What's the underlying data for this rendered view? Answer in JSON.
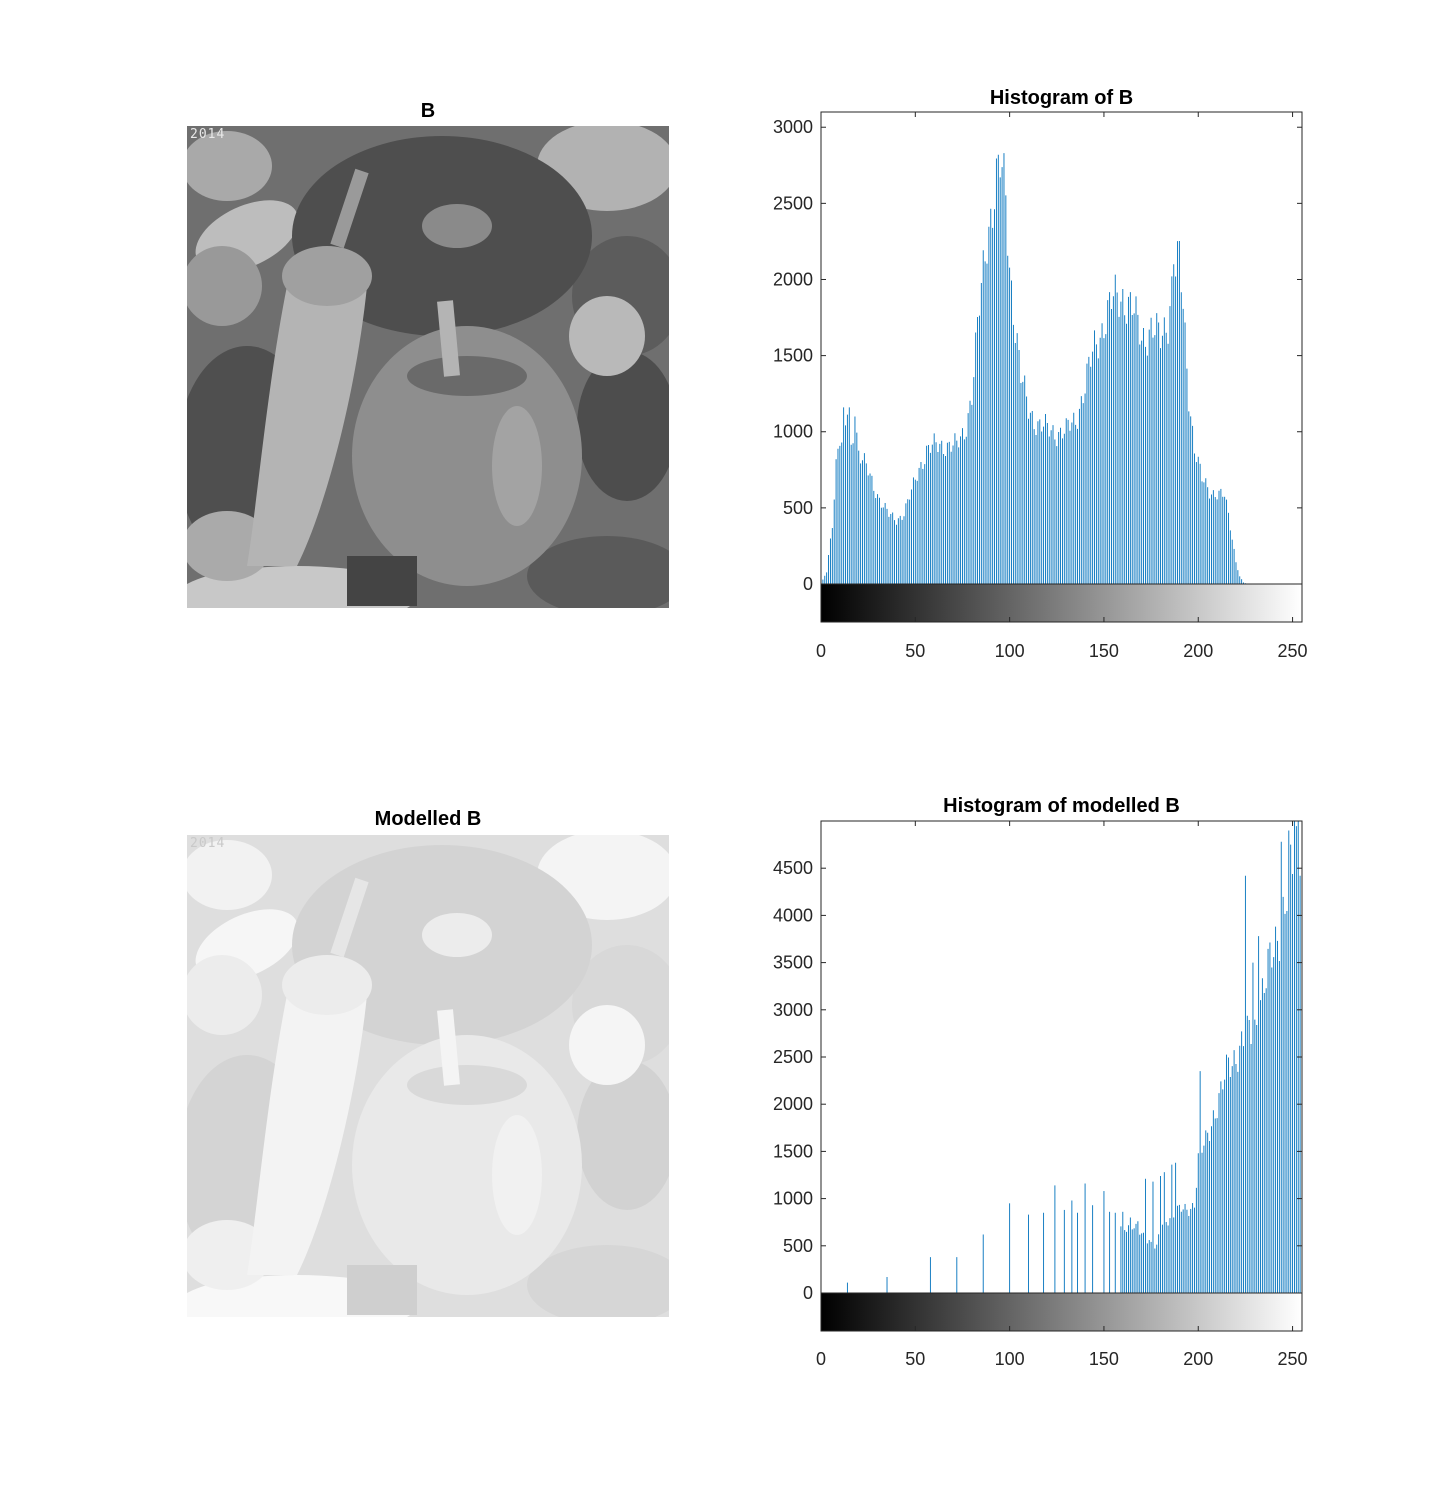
{
  "panels": {
    "image_b": {
      "title": "B",
      "stamp": "2014"
    },
    "image_modelled": {
      "title": "Modelled B",
      "stamp": "2014"
    }
  },
  "colors": {
    "bar": "#0072bd",
    "axis": "#262626",
    "text": "#262626",
    "background": "#ffffff"
  },
  "chart_data": [
    {
      "type": "bar",
      "title": "Histogram of B",
      "xlabel": "",
      "ylabel": "",
      "xlim": [
        0,
        255
      ],
      "ylim": [
        0,
        3100
      ],
      "xticks": [
        0,
        50,
        100,
        150,
        200,
        250
      ],
      "yticks": [
        0,
        500,
        1000,
        1500,
        2000,
        2500,
        3000
      ],
      "colorbar": "grayscale 0-255",
      "grid": false,
      "series": [
        {
          "keypoints": [
            [
              0,
              0
            ],
            [
              3,
              80
            ],
            [
              6,
              400
            ],
            [
              8,
              800
            ],
            [
              10,
              950
            ],
            [
              12,
              870
            ],
            [
              14,
              1150
            ],
            [
              16,
              880
            ],
            [
              18,
              1100
            ],
            [
              20,
              870
            ],
            [
              24,
              760
            ],
            [
              28,
              640
            ],
            [
              32,
              540
            ],
            [
              36,
              450
            ],
            [
              40,
              420
            ],
            [
              44,
              470
            ],
            [
              48,
              600
            ],
            [
              52,
              760
            ],
            [
              56,
              880
            ],
            [
              60,
              900
            ],
            [
              66,
              920
            ],
            [
              72,
              900
            ],
            [
              76,
              1000
            ],
            [
              80,
              1250
            ],
            [
              84,
              1800
            ],
            [
              88,
              2300
            ],
            [
              92,
              2580
            ],
            [
              95,
              2720
            ],
            [
              98,
              2550
            ],
            [
              100,
              2100
            ],
            [
              103,
              1700
            ],
            [
              106,
              1350
            ],
            [
              110,
              1150
            ],
            [
              115,
              1050
            ],
            [
              120,
              1010
            ],
            [
              125,
              1000
            ],
            [
              130,
              1000
            ],
            [
              135,
              1080
            ],
            [
              140,
              1300
            ],
            [
              145,
              1550
            ],
            [
              150,
              1720
            ],
            [
              155,
              1860
            ],
            [
              160,
              1900
            ],
            [
              165,
              1800
            ],
            [
              170,
              1620
            ],
            [
              175,
              1680
            ],
            [
              180,
              1600
            ],
            [
              184,
              1750
            ],
            [
              187,
              2070
            ],
            [
              190,
              2100
            ],
            [
              192,
              1800
            ],
            [
              195,
              1250
            ],
            [
              198,
              900
            ],
            [
              202,
              680
            ],
            [
              206,
              610
            ],
            [
              210,
              600
            ],
            [
              214,
              570
            ],
            [
              216,
              450
            ],
            [
              218,
              300
            ],
            [
              220,
              150
            ],
            [
              222,
              50
            ],
            [
              224,
              10
            ],
            [
              226,
              0
            ],
            [
              255,
              0
            ]
          ],
          "spikes": [
            [
              12,
              1160
            ],
            [
              15,
              1160
            ],
            [
              18,
              1100
            ],
            [
              187,
              2100
            ],
            [
              255,
              40
            ]
          ]
        }
      ]
    },
    {
      "type": "bar",
      "title": "Histogram of modelled B",
      "xlabel": "",
      "ylabel": "",
      "xlim": [
        0,
        255
      ],
      "ylim": [
        0,
        5000
      ],
      "xticks": [
        0,
        50,
        100,
        150,
        200,
        250
      ],
      "yticks": [
        0,
        500,
        1000,
        1500,
        2000,
        2500,
        3000,
        3500,
        4000,
        4500
      ],
      "colorbar": "grayscale 0-255",
      "grid": false,
      "series": [
        {
          "sparse": [
            [
              0,
              80
            ],
            [
              14,
              110
            ],
            [
              35,
              170
            ],
            [
              58,
              380
            ],
            [
              72,
              380
            ],
            [
              86,
              620
            ],
            [
              100,
              950
            ],
            [
              110,
              830
            ],
            [
              118,
              850
            ],
            [
              124,
              1140
            ],
            [
              129,
              880
            ],
            [
              133,
              980
            ],
            [
              136,
              850
            ],
            [
              140,
              1160
            ],
            [
              144,
              930
            ],
            [
              150,
              1080
            ],
            [
              153,
              860
            ],
            [
              156,
              850
            ],
            [
              160,
              860
            ],
            [
              164,
              800
            ],
            [
              168,
              760
            ],
            [
              172,
              1210
            ],
            [
              176,
              1180
            ],
            [
              180,
              1240
            ],
            [
              182,
              1280
            ],
            [
              186,
              1360
            ],
            [
              188,
              1380
            ]
          ],
          "keypoints": [
            [
              159,
              720
            ],
            [
              163,
              700
            ],
            [
              166,
              680
            ],
            [
              170,
              640
            ],
            [
              174,
              560
            ],
            [
              176,
              480
            ],
            [
              178,
              470
            ],
            [
              180,
              700
            ],
            [
              183,
              780
            ],
            [
              186,
              820
            ],
            [
              190,
              870
            ],
            [
              195,
              900
            ],
            [
              198,
              950
            ],
            [
              200,
              1400
            ],
            [
              204,
              1600
            ],
            [
              208,
              1900
            ],
            [
              212,
              2100
            ],
            [
              216,
              2400
            ],
            [
              220,
              2550
            ],
            [
              224,
              2650
            ],
            [
              228,
              2750
            ],
            [
              230,
              2800
            ],
            [
              232,
              3100
            ],
            [
              236,
              3300
            ],
            [
              240,
              3600
            ],
            [
              244,
              4000
            ],
            [
              248,
              4300
            ],
            [
              252,
              4650
            ],
            [
              255,
              4950
            ]
          ],
          "spikes": [
            [
              201,
              2350
            ],
            [
              208,
              1650
            ],
            [
              225,
              4420
            ],
            [
              229,
              3500
            ],
            [
              232,
              3780
            ],
            [
              236,
              3100
            ],
            [
              244,
              4780
            ],
            [
              248,
              4900
            ],
            [
              251,
              5000
            ],
            [
              253,
              5000
            ],
            [
              255,
              5000
            ]
          ]
        }
      ]
    }
  ]
}
